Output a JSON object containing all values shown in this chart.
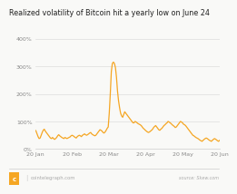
{
  "title": "Realized volatility of Bitcoin hit a yearly low on June 24",
  "line_color": "#f5a623",
  "bg_color": "#f9f9f7",
  "plot_bg_color": "#f9f9f7",
  "grid_color": "#dddddd",
  "yticks": [
    0,
    100,
    200,
    300,
    400
  ],
  "ytick_labels": [
    "0%",
    "100%",
    "200%",
    "300%",
    "400%"
  ],
  "xtick_labels": [
    "20 Jan",
    "20 Feb",
    "20 Mar",
    "20 Apr",
    "20 May",
    "20 Jun"
  ],
  "source_text": "source: Skew.com",
  "logo_text": "cointelegraph.com",
  "line_width": 0.9,
  "data_y": [
    70,
    65,
    55,
    45,
    38,
    40,
    50,
    60,
    68,
    72,
    65,
    60,
    55,
    50,
    45,
    40,
    38,
    42,
    38,
    35,
    38,
    42,
    48,
    52,
    48,
    45,
    42,
    40,
    38,
    42,
    40,
    38,
    40,
    42,
    44,
    48,
    50,
    48,
    45,
    42,
    40,
    45,
    48,
    50,
    48,
    45,
    50,
    52,
    55,
    52,
    50,
    52,
    55,
    58,
    60,
    55,
    52,
    50,
    48,
    50,
    55,
    60,
    65,
    70,
    68,
    65,
    60,
    58,
    62,
    68,
    75,
    80,
    130,
    200,
    280,
    310,
    315,
    310,
    295,
    260,
    210,
    175,
    150,
    130,
    120,
    115,
    125,
    135,
    130,
    125,
    120,
    115,
    110,
    105,
    100,
    95,
    95,
    100,
    98,
    95,
    92,
    90,
    88,
    85,
    80,
    75,
    72,
    68,
    65,
    62,
    60,
    62,
    65,
    68,
    72,
    78,
    82,
    85,
    80,
    75,
    70,
    68,
    72,
    75,
    80,
    85,
    88,
    92,
    95,
    100,
    98,
    95,
    92,
    88,
    85,
    82,
    78,
    80,
    85,
    90,
    95,
    100,
    98,
    95,
    90,
    88,
    85,
    80,
    75,
    70,
    65,
    60,
    55,
    50,
    48,
    45,
    42,
    40,
    38,
    35,
    32,
    30,
    28,
    32,
    35,
    38,
    40,
    38,
    35,
    32,
    30,
    28,
    32,
    35,
    38,
    36,
    33,
    30,
    28,
    32
  ]
}
